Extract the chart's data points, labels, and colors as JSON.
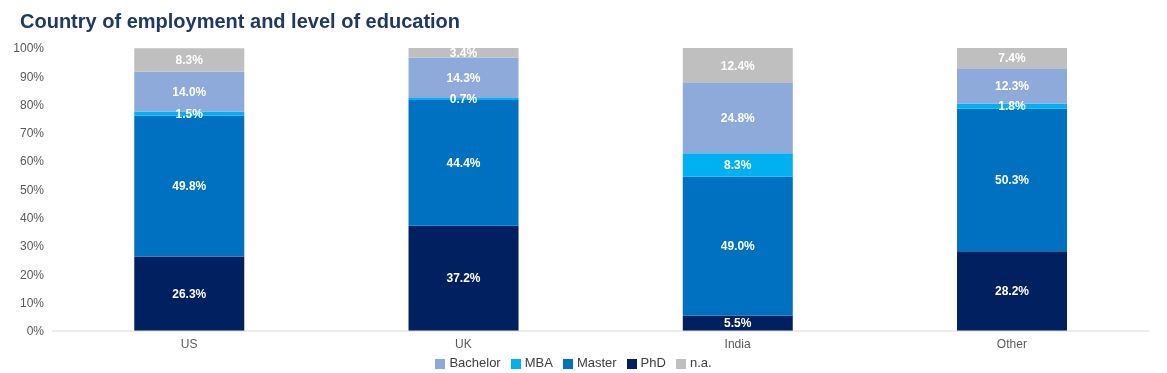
{
  "chart_data": {
    "type": "bar",
    "title": "Country of employment and level of education",
    "categories": [
      "US",
      "UK",
      "India",
      "Other"
    ],
    "stacked": true,
    "series": [
      {
        "name": "PhD",
        "color": "#002060",
        "values": [
          26.3,
          37.2,
          5.5,
          28.2
        ],
        "value_labels": [
          "26.3%",
          "37.2%",
          "5.5%",
          "28.2%"
        ]
      },
      {
        "name": "Master",
        "color": "#0070c0",
        "values": [
          49.8,
          44.4,
          49.0,
          50.3
        ],
        "value_labels": [
          "49.8%",
          "44.4%",
          "49.0%",
          "50.3%"
        ]
      },
      {
        "name": "MBA",
        "color": "#00b0f0",
        "values": [
          1.5,
          0.7,
          8.3,
          1.8
        ],
        "value_labels": [
          "1.5%",
          "0.7%",
          "8.3%",
          "1.8%"
        ]
      },
      {
        "name": "Bachelor",
        "color": "#8eaadb",
        "values": [
          14.0,
          14.3,
          24.8,
          12.3
        ],
        "value_labels": [
          "14.0%",
          "14.3%",
          "24.8%",
          "12.3%"
        ]
      },
      {
        "name": "n.a.",
        "color": "#bfbfbf",
        "values": [
          8.3,
          3.4,
          12.4,
          7.4
        ],
        "value_labels": [
          "8.3%",
          "3.4%",
          "12.4%",
          "7.4%"
        ]
      }
    ],
    "ylim": [
      0,
      100
    ],
    "yticks": [
      {
        "value": 0,
        "label": "0%"
      },
      {
        "value": 10,
        "label": "10%"
      },
      {
        "value": 20,
        "label": "20%"
      },
      {
        "value": 30,
        "label": "30%"
      },
      {
        "value": 40,
        "label": "40%"
      },
      {
        "value": 50,
        "label": "50%"
      },
      {
        "value": 60,
        "label": "60%"
      },
      {
        "value": 70,
        "label": "70%"
      },
      {
        "value": 80,
        "label": "80%"
      },
      {
        "value": 90,
        "label": "90%"
      },
      {
        "value": 100,
        "label": "100%"
      }
    ],
    "grid": false,
    "legend": "bottom"
  }
}
